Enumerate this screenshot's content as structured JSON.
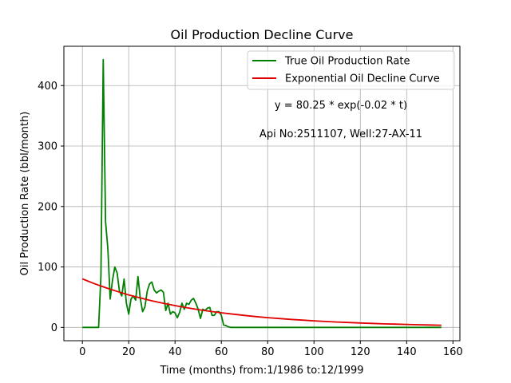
{
  "chart_data": {
    "type": "line",
    "title": "Oil Production Decline Curve",
    "xlabel": "Time (months) from:1/1986 to:12/1999",
    "ylabel": "Oil Production Rate (bbl/month)",
    "xlim": [
      -8,
      163
    ],
    "ylim": [
      -22,
      465
    ],
    "xticks": [
      0,
      20,
      40,
      60,
      80,
      100,
      120,
      140,
      160
    ],
    "yticks": [
      0,
      100,
      200,
      300,
      400
    ],
    "grid": true,
    "legend_position": "top-right",
    "series": [
      {
        "name": "True Oil Production Rate",
        "color": "#008000",
        "x": [
          0,
          1,
          2,
          3,
          4,
          5,
          6,
          7,
          8,
          9,
          10,
          11,
          12,
          13,
          14,
          15,
          16,
          17,
          18,
          19,
          20,
          21,
          22,
          23,
          24,
          25,
          26,
          27,
          28,
          29,
          30,
          31,
          32,
          33,
          34,
          35,
          36,
          37,
          38,
          39,
          40,
          41,
          42,
          43,
          44,
          45,
          46,
          47,
          48,
          49,
          50,
          51,
          52,
          53,
          54,
          55,
          56,
          57,
          58,
          59,
          60,
          61,
          62,
          63,
          64,
          155
        ],
        "values": [
          0,
          0,
          0,
          0,
          0,
          0,
          0,
          0,
          85,
          443,
          175,
          130,
          47,
          78,
          100,
          90,
          60,
          52,
          80,
          40,
          22,
          47,
          52,
          45,
          84,
          48,
          26,
          34,
          60,
          72,
          75,
          62,
          57,
          60,
          62,
          58,
          28,
          40,
          22,
          26,
          24,
          16,
          25,
          40,
          30,
          40,
          38,
          45,
          48,
          40,
          30,
          15,
          30,
          28,
          32,
          33,
          20,
          20,
          26,
          26,
          20,
          4,
          3,
          1,
          0,
          0
        ]
      },
      {
        "name": "Exponential Oil Decline Curve",
        "color": "#e00000",
        "function": "80.25*exp(-0.02*t)",
        "x": [
          0,
          5,
          10,
          15,
          20,
          25,
          30,
          35,
          40,
          45,
          50,
          55,
          60,
          65,
          70,
          75,
          80,
          85,
          90,
          95,
          100,
          105,
          110,
          115,
          120,
          125,
          130,
          135,
          140,
          145,
          150,
          155
        ],
        "values": [
          80.25,
          72.6,
          65.7,
          59.5,
          53.8,
          48.7,
          44.0,
          39.9,
          36.1,
          32.6,
          29.5,
          26.7,
          24.2,
          21.9,
          19.8,
          17.9,
          16.2,
          14.7,
          13.3,
          12.0,
          10.9,
          9.8,
          8.9,
          8.1,
          7.3,
          6.6,
          5.9,
          5.4,
          4.9,
          4.4,
          4.0,
          3.6
        ]
      }
    ],
    "annotations": [
      "y = 80.25 * exp(-0.02 * t)",
      "Api No:2511107, Well:27-AX-11"
    ]
  }
}
